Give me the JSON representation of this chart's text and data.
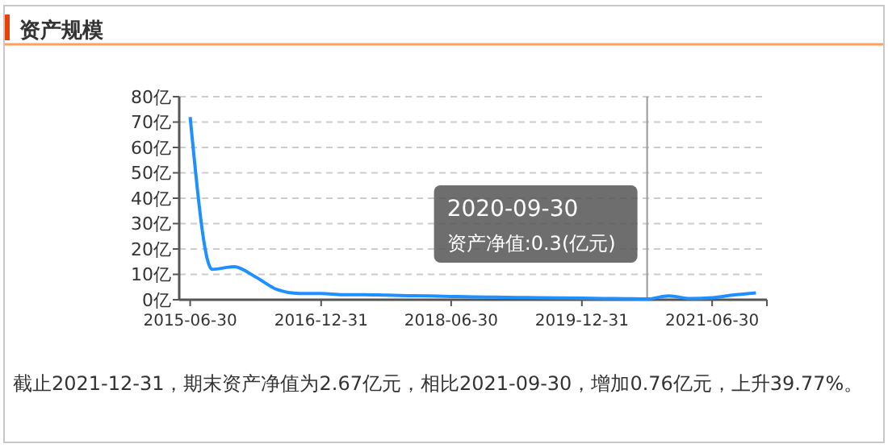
{
  "chart_data": {
    "type": "line",
    "title": "资产规模",
    "x": [
      "2015-06-30",
      "2015-09-30",
      "2015-12-31",
      "2016-03-31",
      "2016-06-30",
      "2016-09-30",
      "2016-12-31",
      "2017-03-31",
      "2017-06-30",
      "2017-09-30",
      "2017-12-31",
      "2018-03-31",
      "2018-06-30",
      "2018-09-30",
      "2018-12-31",
      "2019-03-31",
      "2019-06-30",
      "2019-09-30",
      "2019-12-31",
      "2020-03-31",
      "2020-06-30",
      "2020-09-30",
      "2020-12-31",
      "2021-03-31",
      "2021-06-30",
      "2021-09-30",
      "2021-12-31"
    ],
    "series": [
      {
        "color": "#1e90ff",
        "values": [
          72,
          12,
          13,
          9,
          4,
          2.5,
          2.5,
          2,
          2,
          1.8,
          1.6,
          1.5,
          1.3,
          1.1,
          1,
          0.9,
          0.8,
          0.7,
          0.6,
          0.5,
          0.4,
          0.3,
          1.5,
          0.5,
          0.8,
          1.9,
          2.7
        ]
      }
    ],
    "xlim": [
      "2015-05-15",
      "2022-02-15"
    ],
    "xticks": [
      "2015-06-30",
      "2016-12-31",
      "2018-06-30",
      "2019-12-31",
      "2021-06-30"
    ],
    "ylim": [
      0,
      80
    ],
    "yticks": [
      {
        "value": 0,
        "label": "0亿"
      },
      {
        "value": 10,
        "label": "10亿"
      },
      {
        "value": 20,
        "label": "20亿"
      },
      {
        "value": 30,
        "label": "30亿"
      },
      {
        "value": 40,
        "label": "40亿"
      },
      {
        "value": 50,
        "label": "50亿"
      },
      {
        "value": 60,
        "label": "60亿"
      },
      {
        "value": 70,
        "label": "70亿"
      },
      {
        "value": 80,
        "label": "80亿"
      }
    ],
    "grid": "y",
    "marker": "none",
    "line_style": "solid",
    "ref_lines": [
      {
        "axis": "x",
        "value": "2020-09-30",
        "color": "#999999"
      }
    ],
    "annotations": [
      "2020-09-30",
      "资产净值:0.3(亿元)",
      "截止2021-12-31，期末资产净值为2.67亿元，相比2021-09-30，增加0.76亿元，上升39.77%。"
    ]
  }
}
